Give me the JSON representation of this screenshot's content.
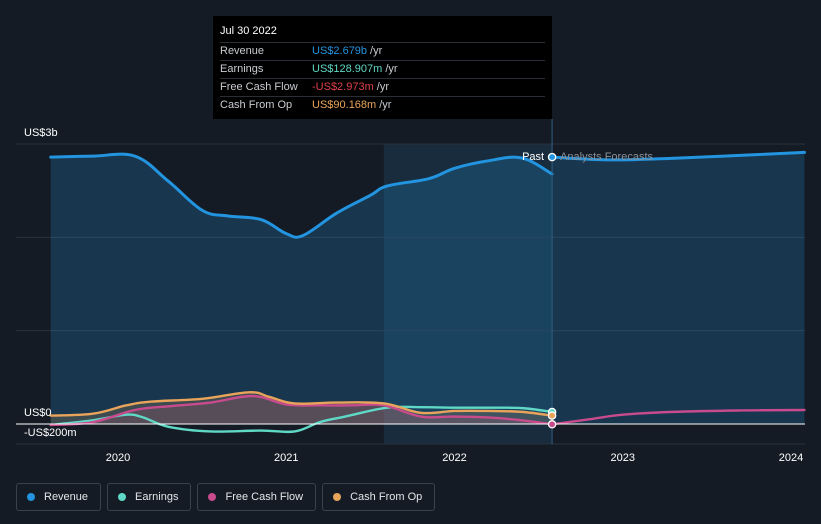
{
  "colors": {
    "background": "#151b24",
    "revenue": "#2394df",
    "earnings": "#5fd9c6",
    "free_cash_flow": "#c84b8d",
    "cash_from_op": "#e9a45b",
    "grid": "#2a313b",
    "axis_text": "#ffffff"
  },
  "tooltip": {
    "date": "Jul 30 2022",
    "rows": [
      {
        "label": "Revenue",
        "value": "US$2.679b",
        "unit": "/yr",
        "color": "#2394df"
      },
      {
        "label": "Earnings",
        "value": "US$128.907m",
        "unit": "/yr",
        "color": "#5fd9c6"
      },
      {
        "label": "Free Cash Flow",
        "value": "-US$2.973m",
        "unit": "/yr",
        "color": "#e0424b"
      },
      {
        "label": "Cash From Op",
        "value": "US$90.168m",
        "unit": "/yr",
        "color": "#e9a45b"
      }
    ]
  },
  "labels": {
    "past": "Past",
    "forecast": "Analysts Forecasts"
  },
  "legend": [
    {
      "label": "Revenue",
      "color": "#2394df"
    },
    {
      "label": "Earnings",
      "color": "#5fd9c6"
    },
    {
      "label": "Free Cash Flow",
      "color": "#c84b8d"
    },
    {
      "label": "Cash From Op",
      "color": "#e9a45b"
    }
  ],
  "chart_data": {
    "type": "line",
    "title": "",
    "xlabel": "",
    "ylabel": "",
    "units": "USD millions",
    "ylim": [
      -200,
      3000
    ],
    "xlim": [
      2019.6,
      2024.08
    ],
    "y_tick_labels": [
      {
        "value": 3000,
        "label": "US$3b"
      },
      {
        "value": 0,
        "label": "US$0"
      },
      {
        "value": -200,
        "label": "-US$200m"
      }
    ],
    "x_tick_labels": [
      {
        "value": 2020,
        "label": "2020"
      },
      {
        "value": 2021,
        "label": "2021"
      },
      {
        "value": 2022,
        "label": "2022"
      },
      {
        "value": 2023,
        "label": "2023"
      },
      {
        "value": 2024,
        "label": "2024"
      }
    ],
    "highlight_range": [
      2021.58,
      2022.58
    ],
    "past_forecast_split": 2022.58,
    "series": [
      {
        "name": "Revenue",
        "key": "revenue",
        "fill": true,
        "points": [
          [
            2019.6,
            2860
          ],
          [
            2019.85,
            2870
          ],
          [
            2020.1,
            2870
          ],
          [
            2020.3,
            2600
          ],
          [
            2020.5,
            2290
          ],
          [
            2020.65,
            2230
          ],
          [
            2020.85,
            2190
          ],
          [
            2021.0,
            2040
          ],
          [
            2021.1,
            2020
          ],
          [
            2021.3,
            2260
          ],
          [
            2021.5,
            2450
          ],
          [
            2021.6,
            2550
          ],
          [
            2021.85,
            2630
          ],
          [
            2022.0,
            2740
          ],
          [
            2022.2,
            2820
          ],
          [
            2022.4,
            2850
          ],
          [
            2022.58,
            2679
          ]
        ]
      },
      {
        "name": "Revenue forecast",
        "key": "revenue",
        "fill": true,
        "dashed": false,
        "points": [
          [
            2022.58,
            2860
          ],
          [
            2022.9,
            2830
          ],
          [
            2023.2,
            2840
          ],
          [
            2023.6,
            2870
          ],
          [
            2024.08,
            2910
          ]
        ]
      },
      {
        "name": "Earnings",
        "key": "earnings",
        "fill": false,
        "points": [
          [
            2019.6,
            -10
          ],
          [
            2019.85,
            40
          ],
          [
            2020.05,
            100
          ],
          [
            2020.15,
            70
          ],
          [
            2020.3,
            -30
          ],
          [
            2020.55,
            -80
          ],
          [
            2020.85,
            -70
          ],
          [
            2021.05,
            -80
          ],
          [
            2021.2,
            20
          ],
          [
            2021.35,
            80
          ],
          [
            2021.6,
            175
          ],
          [
            2021.8,
            180
          ],
          [
            2022.0,
            175
          ],
          [
            2022.2,
            175
          ],
          [
            2022.4,
            170
          ],
          [
            2022.58,
            129
          ]
        ]
      },
      {
        "name": "Free Cash Flow",
        "key": "free_cash_flow",
        "fill": true,
        "points": [
          [
            2019.6,
            -10
          ],
          [
            2019.85,
            20
          ],
          [
            2020.1,
            150
          ],
          [
            2020.3,
            190
          ],
          [
            2020.55,
            230
          ],
          [
            2020.8,
            300
          ],
          [
            2021.0,
            210
          ],
          [
            2021.2,
            200
          ],
          [
            2021.4,
            200
          ],
          [
            2021.58,
            200
          ],
          [
            2021.8,
            80
          ],
          [
            2022.0,
            80
          ],
          [
            2022.2,
            70
          ],
          [
            2022.4,
            40
          ],
          [
            2022.58,
            -3
          ]
        ]
      },
      {
        "name": "Free Cash Flow forecast",
        "key": "free_cash_flow",
        "fill": false,
        "points": [
          [
            2022.58,
            -3
          ],
          [
            2022.8,
            50
          ],
          [
            2023.0,
            100
          ],
          [
            2023.3,
            130
          ],
          [
            2023.7,
            145
          ],
          [
            2024.08,
            150
          ]
        ]
      },
      {
        "name": "Cash From Op",
        "key": "cash_from_op",
        "fill": true,
        "points": [
          [
            2019.6,
            90
          ],
          [
            2019.85,
            110
          ],
          [
            2020.05,
            200
          ],
          [
            2020.2,
            240
          ],
          [
            2020.5,
            270
          ],
          [
            2020.78,
            340
          ],
          [
            2020.9,
            290
          ],
          [
            2021.05,
            220
          ],
          [
            2021.3,
            230
          ],
          [
            2021.58,
            220
          ],
          [
            2021.8,
            120
          ],
          [
            2022.0,
            140
          ],
          [
            2022.2,
            140
          ],
          [
            2022.4,
            130
          ],
          [
            2022.58,
            90
          ]
        ]
      }
    ]
  }
}
